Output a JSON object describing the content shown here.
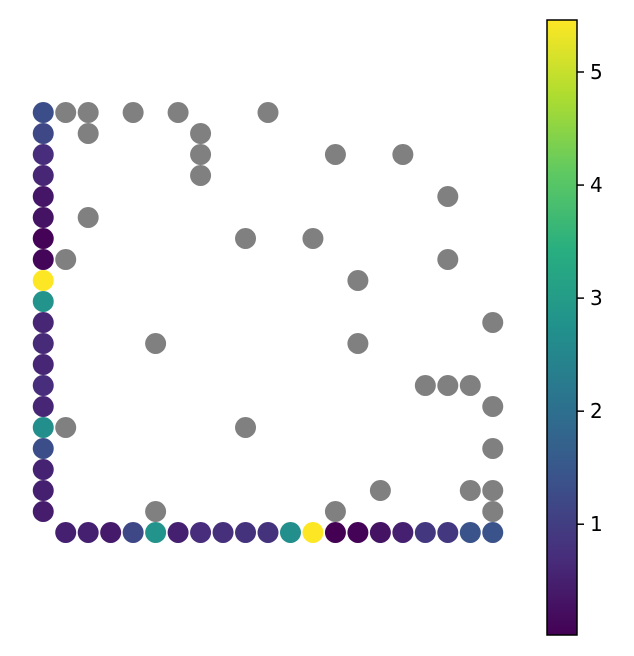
{
  "chart_data": {
    "type": "scatter",
    "title": "",
    "xlabel": "",
    "ylabel": "",
    "axes_visible": false,
    "xlim": [
      -0.5,
      20.5
    ],
    "ylim": [
      -1.5,
      20.5
    ],
    "grey_color": "#808080",
    "colormap": "viridis",
    "colorbar": {
      "placement": "right",
      "vmin": 0.02,
      "vmax": 5.46,
      "ticks": [
        1,
        2,
        3,
        4,
        5
      ],
      "tick_labels": [
        "1",
        "2",
        "3",
        "4",
        "5"
      ]
    },
    "grey_points": [
      [
        1,
        20
      ],
      [
        2,
        20
      ],
      [
        4,
        20
      ],
      [
        6,
        20
      ],
      [
        10,
        20
      ],
      [
        2,
        19
      ],
      [
        7,
        19
      ],
      [
        7,
        18
      ],
      [
        13,
        18
      ],
      [
        16,
        18
      ],
      [
        7,
        17
      ],
      [
        18,
        16
      ],
      [
        2,
        15
      ],
      [
        9,
        14
      ],
      [
        12,
        14
      ],
      [
        1,
        13
      ],
      [
        18,
        13
      ],
      [
        14,
        12
      ],
      [
        20,
        10
      ],
      [
        5,
        9
      ],
      [
        14,
        9
      ],
      [
        17,
        7
      ],
      [
        18,
        7
      ],
      [
        19,
        7
      ],
      [
        20,
        6
      ],
      [
        1,
        5
      ],
      [
        9,
        5
      ],
      [
        20,
        4
      ],
      [
        15,
        2
      ],
      [
        19,
        2
      ],
      [
        20,
        2
      ],
      [
        5,
        1
      ],
      [
        13,
        1
      ],
      [
        20,
        1
      ]
    ],
    "left_column": {
      "x": 0,
      "y": [
        20,
        19,
        18,
        17,
        16,
        15,
        14,
        13,
        12,
        11,
        10,
        9,
        8,
        7,
        6,
        5,
        4,
        3,
        2,
        1
      ],
      "values": [
        1.3,
        1.2,
        0.7,
        0.6,
        0.35,
        0.3,
        0.05,
        0.1,
        5.46,
        2.8,
        0.6,
        0.65,
        0.6,
        0.7,
        0.6,
        2.7,
        1.3,
        0.55,
        0.5,
        0.45
      ]
    },
    "bottom_row": {
      "y": 0,
      "x": [
        1,
        2,
        3,
        4,
        5,
        6,
        7,
        8,
        9,
        10,
        11,
        12,
        13,
        14,
        15,
        16,
        17,
        18,
        19,
        20
      ],
      "values": [
        0.5,
        0.5,
        0.4,
        1.2,
        2.8,
        0.5,
        0.7,
        0.75,
        0.8,
        0.8,
        2.7,
        5.46,
        0.02,
        0.05,
        0.3,
        0.5,
        0.9,
        0.9,
        1.4,
        1.4
      ]
    }
  }
}
